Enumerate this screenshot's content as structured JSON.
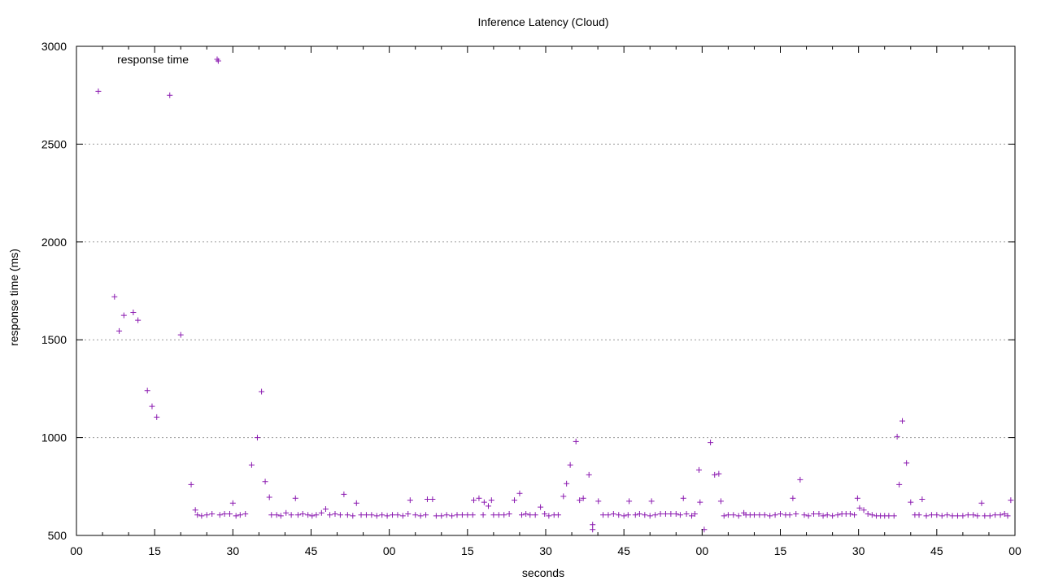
{
  "chart_data": {
    "type": "scatter",
    "title": "Inference Latency (Cloud)",
    "xlabel": "seconds",
    "ylabel": "response time (ms)",
    "ylim": [
      500,
      3000
    ],
    "xlim": [
      0,
      180
    ],
    "x_ticks": [
      {
        "x": 0,
        "label": "00"
      },
      {
        "x": 15,
        "label": "15"
      },
      {
        "x": 30,
        "label": "30"
      },
      {
        "x": 45,
        "label": "45"
      },
      {
        "x": 60,
        "label": "00"
      },
      {
        "x": 75,
        "label": "15"
      },
      {
        "x": 90,
        "label": "30"
      },
      {
        "x": 105,
        "label": "45"
      },
      {
        "x": 120,
        "label": "00"
      },
      {
        "x": 135,
        "label": "15"
      },
      {
        "x": 150,
        "label": "30"
      },
      {
        "x": 165,
        "label": "45"
      },
      {
        "x": 180,
        "label": "00"
      }
    ],
    "y_ticks": [
      500,
      1000,
      1500,
      2000,
      2500,
      3000
    ],
    "grid": "horizontal dotted",
    "legend_position": "top-left",
    "series": [
      {
        "name": "response time",
        "color": "#8b1ab0",
        "marker": "+",
        "points": [
          [
            4.2,
            2770
          ],
          [
            7.3,
            1720
          ],
          [
            8.2,
            1545
          ],
          [
            9.1,
            1625
          ],
          [
            10.9,
            1640
          ],
          [
            11.8,
            1600
          ],
          [
            13.6,
            1240
          ],
          [
            14.5,
            1160
          ],
          [
            15.4,
            1105
          ],
          [
            17.9,
            2750
          ],
          [
            20.0,
            1525
          ],
          [
            22.0,
            760
          ],
          [
            22.8,
            630
          ],
          [
            23.2,
            605
          ],
          [
            24.0,
            600
          ],
          [
            25.0,
            605
          ],
          [
            26.0,
            610
          ],
          [
            27.2,
            2925
          ],
          [
            27.5,
            605
          ],
          [
            28.4,
            610
          ],
          [
            29.4,
            610
          ],
          [
            30.0,
            665
          ],
          [
            30.6,
            600
          ],
          [
            31.4,
            605
          ],
          [
            32.4,
            610
          ],
          [
            33.6,
            860
          ],
          [
            34.7,
            1000
          ],
          [
            35.5,
            1235
          ],
          [
            36.2,
            775
          ],
          [
            37.0,
            695
          ],
          [
            37.4,
            605
          ],
          [
            38.4,
            605
          ],
          [
            39.2,
            600
          ],
          [
            40.2,
            615
          ],
          [
            41.2,
            605
          ],
          [
            42.0,
            690
          ],
          [
            42.5,
            605
          ],
          [
            43.4,
            610
          ],
          [
            44.4,
            605
          ],
          [
            45.2,
            600
          ],
          [
            46.0,
            605
          ],
          [
            47.0,
            615
          ],
          [
            47.8,
            635
          ],
          [
            48.6,
            605
          ],
          [
            49.6,
            610
          ],
          [
            50.6,
            605
          ],
          [
            51.3,
            710
          ],
          [
            52.0,
            605
          ],
          [
            53.0,
            600
          ],
          [
            53.7,
            665
          ],
          [
            54.6,
            605
          ],
          [
            55.6,
            605
          ],
          [
            56.6,
            605
          ],
          [
            57.6,
            600
          ],
          [
            58.6,
            605
          ],
          [
            59.6,
            600
          ],
          [
            60.6,
            605
          ],
          [
            61.6,
            605
          ],
          [
            62.6,
            600
          ],
          [
            63.6,
            610
          ],
          [
            64.0,
            680
          ],
          [
            65.0,
            605
          ],
          [
            66.0,
            600
          ],
          [
            67.0,
            605
          ],
          [
            67.3,
            685
          ],
          [
            68.3,
            685
          ],
          [
            69.0,
            600
          ],
          [
            70.0,
            600
          ],
          [
            71.0,
            605
          ],
          [
            72.0,
            600
          ],
          [
            73.0,
            605
          ],
          [
            74.0,
            605
          ],
          [
            75.0,
            605
          ],
          [
            76.0,
            605
          ],
          [
            76.2,
            680
          ],
          [
            77.2,
            690
          ],
          [
            78.0,
            605
          ],
          [
            78.2,
            670
          ],
          [
            79.0,
            650
          ],
          [
            79.6,
            680
          ],
          [
            80.0,
            605
          ],
          [
            81.0,
            605
          ],
          [
            82.0,
            605
          ],
          [
            83.0,
            610
          ],
          [
            84.0,
            680
          ],
          [
            85.0,
            715
          ],
          [
            85.4,
            605
          ],
          [
            86.2,
            610
          ],
          [
            87.0,
            605
          ],
          [
            88.0,
            605
          ],
          [
            89.0,
            645
          ],
          [
            89.8,
            610
          ],
          [
            90.6,
            600
          ],
          [
            91.6,
            605
          ],
          [
            92.4,
            605
          ],
          [
            93.4,
            700
          ],
          [
            94.0,
            765
          ],
          [
            94.7,
            860
          ],
          [
            95.8,
            980
          ],
          [
            96.5,
            680
          ],
          [
            97.2,
            690
          ],
          [
            98.3,
            810
          ],
          [
            99.0,
            555
          ],
          [
            99.0,
            530
          ],
          [
            100.1,
            675
          ],
          [
            101.0,
            605
          ],
          [
            102.0,
            605
          ],
          [
            103.0,
            610
          ],
          [
            104.0,
            605
          ],
          [
            105.0,
            600
          ],
          [
            105.8,
            605
          ],
          [
            106.0,
            675
          ],
          [
            107.2,
            605
          ],
          [
            108.0,
            610
          ],
          [
            109.0,
            605
          ],
          [
            110.0,
            600
          ],
          [
            110.3,
            675
          ],
          [
            111.0,
            605
          ],
          [
            112.0,
            610
          ],
          [
            113.0,
            610
          ],
          [
            114.0,
            610
          ],
          [
            115.0,
            610
          ],
          [
            115.8,
            605
          ],
          [
            116.4,
            690
          ],
          [
            117.0,
            610
          ],
          [
            118.0,
            600
          ],
          [
            118.6,
            610
          ],
          [
            119.4,
            835
          ],
          [
            119.6,
            670
          ],
          [
            120.4,
            530
          ],
          [
            121.6,
            975
          ],
          [
            122.4,
            810
          ],
          [
            123.2,
            815
          ],
          [
            123.6,
            675
          ],
          [
            124.2,
            600
          ],
          [
            125.0,
            605
          ],
          [
            126.0,
            605
          ],
          [
            127.0,
            600
          ],
          [
            128.0,
            615
          ],
          [
            128.4,
            605
          ],
          [
            129.2,
            605
          ],
          [
            130.0,
            605
          ],
          [
            131.0,
            605
          ],
          [
            132.0,
            605
          ],
          [
            133.0,
            600
          ],
          [
            134.0,
            605
          ],
          [
            135.0,
            610
          ],
          [
            136.0,
            605
          ],
          [
            136.8,
            605
          ],
          [
            137.4,
            690
          ],
          [
            138.0,
            610
          ],
          [
            138.8,
            785
          ],
          [
            139.6,
            605
          ],
          [
            140.4,
            600
          ],
          [
            141.4,
            610
          ],
          [
            142.4,
            610
          ],
          [
            143.2,
            600
          ],
          [
            144.0,
            605
          ],
          [
            145.0,
            600
          ],
          [
            146.0,
            605
          ],
          [
            146.8,
            610
          ],
          [
            147.6,
            610
          ],
          [
            148.4,
            610
          ],
          [
            149.2,
            605
          ],
          [
            149.8,
            690
          ],
          [
            150.2,
            640
          ],
          [
            151.0,
            630
          ],
          [
            151.8,
            610
          ],
          [
            152.6,
            605
          ],
          [
            153.4,
            600
          ],
          [
            154.2,
            600
          ],
          [
            155.0,
            600
          ],
          [
            155.8,
            600
          ],
          [
            156.8,
            600
          ],
          [
            157.4,
            1005
          ],
          [
            157.8,
            760
          ],
          [
            158.4,
            1085
          ],
          [
            159.2,
            870
          ],
          [
            160.0,
            670
          ],
          [
            160.8,
            605
          ],
          [
            161.6,
            605
          ],
          [
            162.2,
            685
          ],
          [
            163.0,
            600
          ],
          [
            164.0,
            605
          ],
          [
            165.0,
            605
          ],
          [
            166.0,
            600
          ],
          [
            167.0,
            605
          ],
          [
            168.0,
            600
          ],
          [
            169.0,
            600
          ],
          [
            170.0,
            600
          ],
          [
            171.0,
            605
          ],
          [
            172.0,
            605
          ],
          [
            172.8,
            600
          ],
          [
            173.6,
            665
          ],
          [
            174.2,
            600
          ],
          [
            175.2,
            600
          ],
          [
            176.2,
            605
          ],
          [
            177.2,
            605
          ],
          [
            178.0,
            610
          ],
          [
            178.6,
            600
          ],
          [
            179.2,
            680
          ]
        ]
      }
    ]
  }
}
